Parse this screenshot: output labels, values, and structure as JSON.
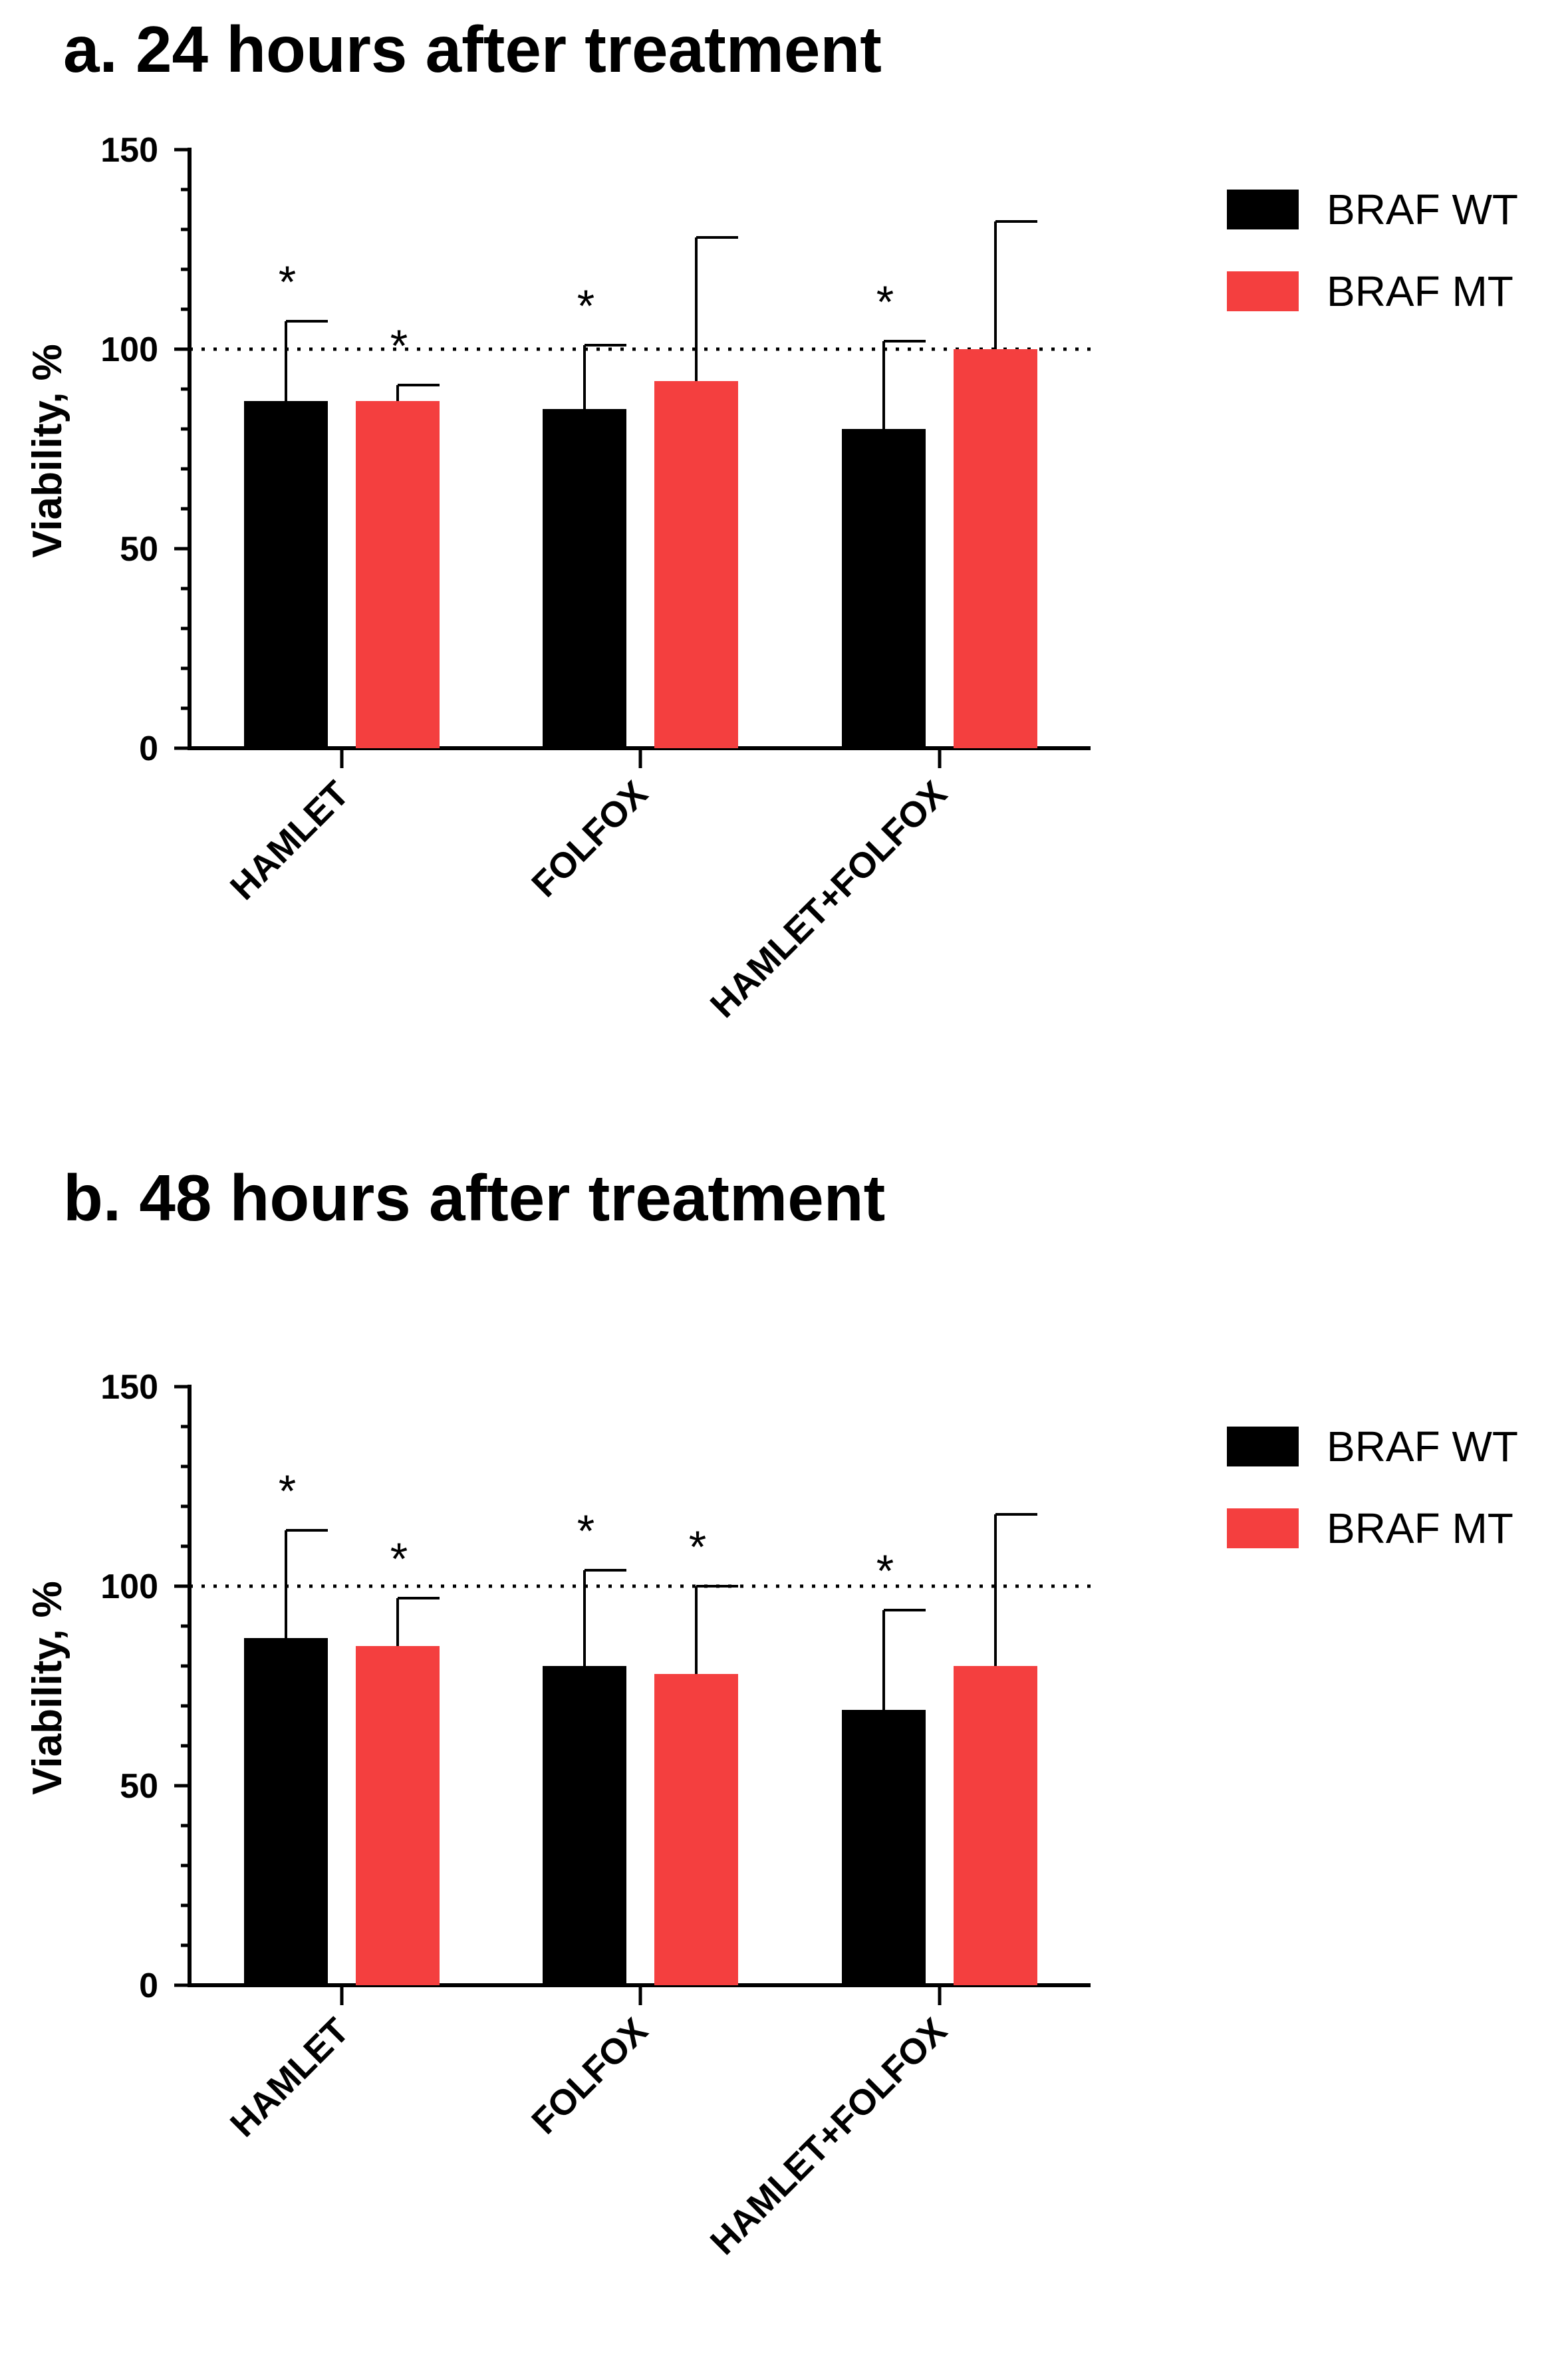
{
  "chart_data": [
    {
      "type": "bar",
      "title": "a. 24 hours after treatment",
      "ylabel": "Viability, %",
      "xlabel": "",
      "ylim": [
        0,
        150
      ],
      "yticks": [
        0,
        50,
        100,
        150
      ],
      "reference_line": 100,
      "categories": [
        "HAMLET",
        "FOLFOX",
        "HAMLET+FOLFOX"
      ],
      "series": [
        {
          "name": "BRAF WT",
          "color": "#000000",
          "values": [
            87,
            85,
            80
          ],
          "error": [
            20,
            16,
            22
          ],
          "significance": [
            "*",
            "*",
            "*"
          ]
        },
        {
          "name": "BRAF MT",
          "color": "#f43f3f",
          "values": [
            87,
            92,
            100
          ],
          "error": [
            4,
            36,
            32
          ],
          "significance": [
            "*",
            "",
            ""
          ]
        }
      ],
      "legend_position": "top-right"
    },
    {
      "type": "bar",
      "title": "b. 48 hours after treatment",
      "ylabel": "Viability, %",
      "xlabel": "",
      "ylim": [
        0,
        150
      ],
      "yticks": [
        0,
        50,
        100,
        150
      ],
      "reference_line": 100,
      "categories": [
        "HAMLET",
        "FOLFOX",
        "HAMLET+FOLFOX"
      ],
      "series": [
        {
          "name": "BRAF WT",
          "color": "#000000",
          "values": [
            87,
            80,
            69
          ],
          "error": [
            27,
            24,
            25
          ],
          "significance": [
            "*",
            "*",
            "*"
          ]
        },
        {
          "name": "BRAF MT",
          "color": "#f43f3f",
          "values": [
            85,
            78,
            80
          ],
          "error": [
            12,
            22,
            38
          ],
          "significance": [
            "*",
            "*",
            ""
          ]
        }
      ],
      "legend_position": "top-right"
    }
  ]
}
